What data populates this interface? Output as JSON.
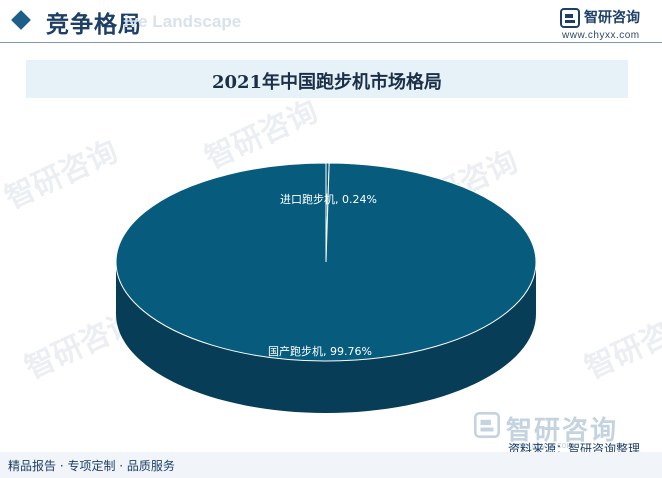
{
  "header": {
    "title": "竞争格局",
    "watermark_text": "ive Landscape"
  },
  "brand": {
    "name": "智研咨询",
    "url": "www.chyxx.com"
  },
  "bottom_brand": {
    "name": "智研咨询",
    "url": "www.chyxx.com"
  },
  "watermark": {
    "text": "智研咨询"
  },
  "footer": {
    "slogan": "精品报告 · 专项定制 · 品质服务",
    "source": "资料来源：智研咨询整理"
  },
  "colors": {
    "slice_top": "#075c7e",
    "slice_side": "#073d56",
    "banner": "#e6f1f8",
    "accent": "#1d5f8a"
  },
  "chart_data": {
    "type": "pie",
    "title": "2021年中国跑步机市场格局",
    "style": "3d",
    "slices": [
      {
        "name": "进口跑步机",
        "value": 0.24,
        "label": "进口跑步机, 0.24%"
      },
      {
        "name": "国产跑步机",
        "value": 99.76,
        "label": "国产跑步机, 99.76%"
      }
    ],
    "legend": "none"
  }
}
